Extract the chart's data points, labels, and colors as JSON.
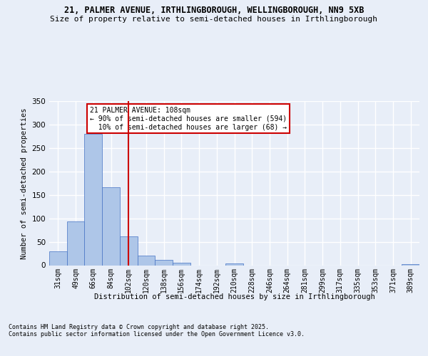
{
  "title_line1": "21, PALMER AVENUE, IRTHLINGBOROUGH, WELLINGBOROUGH, NN9 5XB",
  "title_line2": "Size of property relative to semi-detached houses in Irthlingborough",
  "xlabel": "Distribution of semi-detached houses by size in Irthlingborough",
  "ylabel": "Number of semi-detached properties",
  "footnote": "Contains HM Land Registry data © Crown copyright and database right 2025.\nContains public sector information licensed under the Open Government Licence v3.0.",
  "bin_labels": [
    "31sqm",
    "49sqm",
    "66sqm",
    "84sqm",
    "102sqm",
    "120sqm",
    "138sqm",
    "156sqm",
    "174sqm",
    "192sqm",
    "210sqm",
    "228sqm",
    "246sqm",
    "264sqm",
    "281sqm",
    "299sqm",
    "317sqm",
    "335sqm",
    "353sqm",
    "371sqm",
    "389sqm"
  ],
  "bar_values": [
    30,
    93,
    280,
    166,
    62,
    21,
    11,
    5,
    0,
    0,
    4,
    0,
    0,
    0,
    0,
    0,
    0,
    0,
    0,
    0,
    2
  ],
  "bar_color": "#aec6e8",
  "bar_edge_color": "#4472c4",
  "property_label": "21 PALMER AVENUE: 108sqm",
  "pct_smaller": 90,
  "n_smaller": 594,
  "pct_larger": 10,
  "n_larger": 68,
  "vline_x_index": 4,
  "vline_color": "#cc0000",
  "annotation_box_color": "#cc0000",
  "ylim": [
    0,
    350
  ],
  "yticks": [
    0,
    50,
    100,
    150,
    200,
    250,
    300,
    350
  ],
  "background_color": "#e8eef8",
  "grid_color": "#ffffff"
}
